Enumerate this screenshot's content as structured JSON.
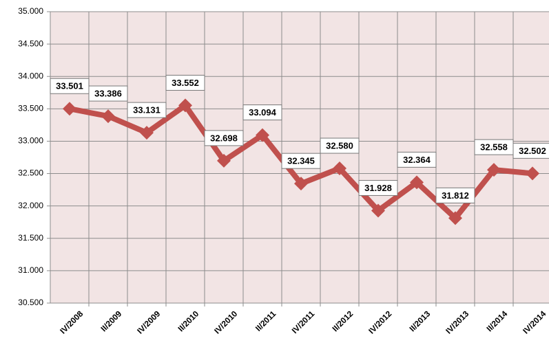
{
  "chart_data": {
    "type": "line",
    "categories": [
      "IV/2008",
      "II/2009",
      "IV/2009",
      "II/2010",
      "IV/2010",
      "II/2011",
      "IV/2011",
      "II/2012",
      "IV/2012",
      "II/2013",
      "IV/2013",
      "II/2014",
      "IV/2014"
    ],
    "series": [
      {
        "color": "#c0504d",
        "values": [
          33.501,
          33.386,
          33.131,
          33.552,
          32.698,
          33.094,
          32.345,
          32.58,
          31.928,
          32.364,
          31.812,
          32.558,
          32.502
        ],
        "value_labels": [
          "33.501",
          "33.386",
          "33.131",
          "33.552",
          "32.698",
          "33.094",
          "32.345",
          "32.580",
          "31.928",
          "32.364",
          "31.812",
          "32.558",
          "32.502"
        ]
      }
    ],
    "ylim": [
      30.5,
      35
    ],
    "yticks": [
      {
        "value": 30.5,
        "label": "30.500"
      },
      {
        "value": 31,
        "label": "31.000"
      },
      {
        "value": 31.5,
        "label": "31.500"
      },
      {
        "value": 32,
        "label": "32.000"
      },
      {
        "value": 32.5,
        "label": "32.500"
      },
      {
        "value": 33,
        "label": "33.000"
      },
      {
        "value": 33.5,
        "label": "33.500"
      },
      {
        "value": 34,
        "label": "34.000"
      },
      {
        "value": 34.5,
        "label": "34.500"
      },
      {
        "value": 35,
        "label": "35.000"
      }
    ],
    "grid": true
  }
}
